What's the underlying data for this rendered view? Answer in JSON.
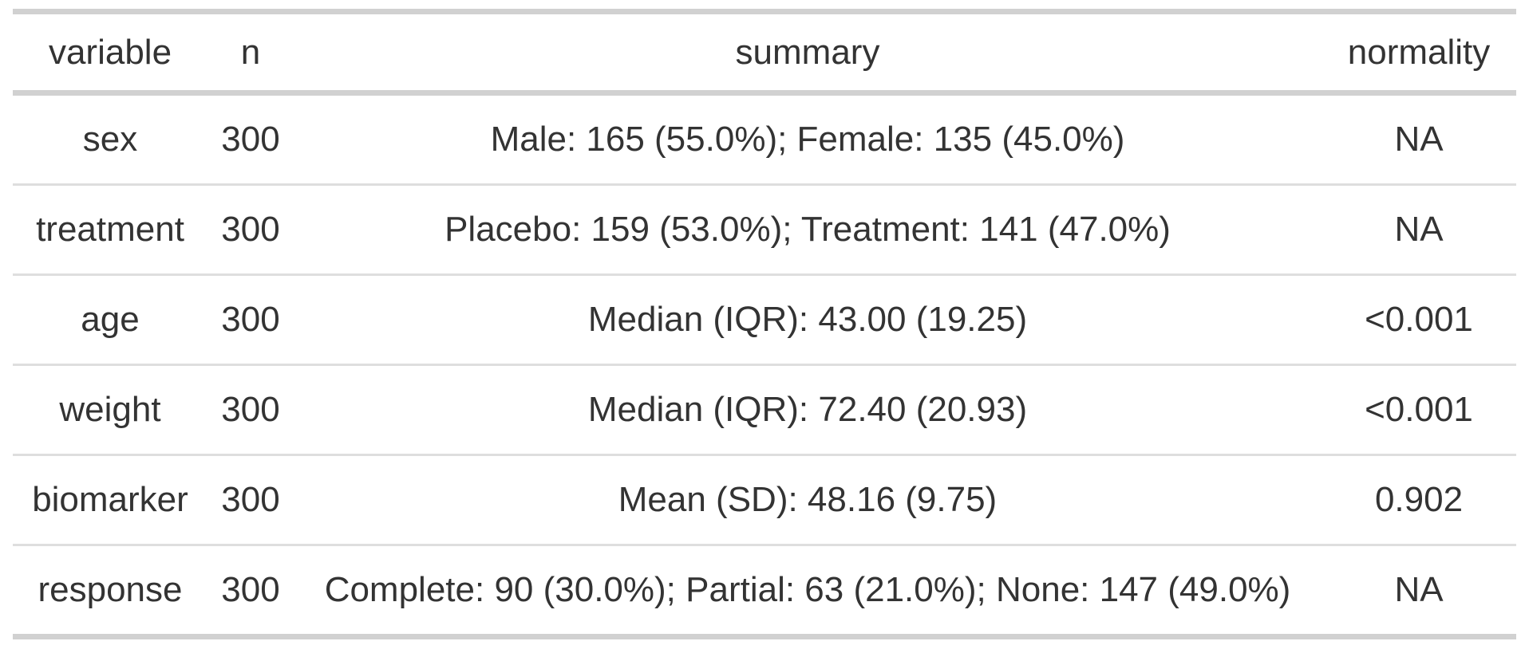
{
  "chart_data": {
    "type": "table",
    "title": "",
    "columns": [
      "variable",
      "n",
      "summary",
      "normality"
    ],
    "rows": [
      [
        "sex",
        "300",
        "Male: 165 (55.0%); Female: 135 (45.0%)",
        "NA"
      ],
      [
        "treatment",
        "300",
        "Placebo: 159 (53.0%); Treatment: 141 (47.0%)",
        "NA"
      ],
      [
        "age",
        "300",
        "Median (IQR): 43.00 (19.25)",
        "<0.001"
      ],
      [
        "weight",
        "300",
        "Median (IQR): 72.40 (20.93)",
        "<0.001"
      ],
      [
        "biomarker",
        "300",
        "Mean (SD): 48.16 (9.75)",
        "0.902"
      ],
      [
        "response",
        "300",
        "Complete: 90 (30.0%); Partial: 63 (21.0%); None: 147 (49.0%)",
        "NA"
      ]
    ],
    "layout": {
      "alignment": "center",
      "grid": "horizontal-rules-only",
      "outer_border_color": "#d1d1d1",
      "inner_border_color": "#dedede",
      "text_color": "#333333",
      "background_color": "#ffffff"
    }
  }
}
